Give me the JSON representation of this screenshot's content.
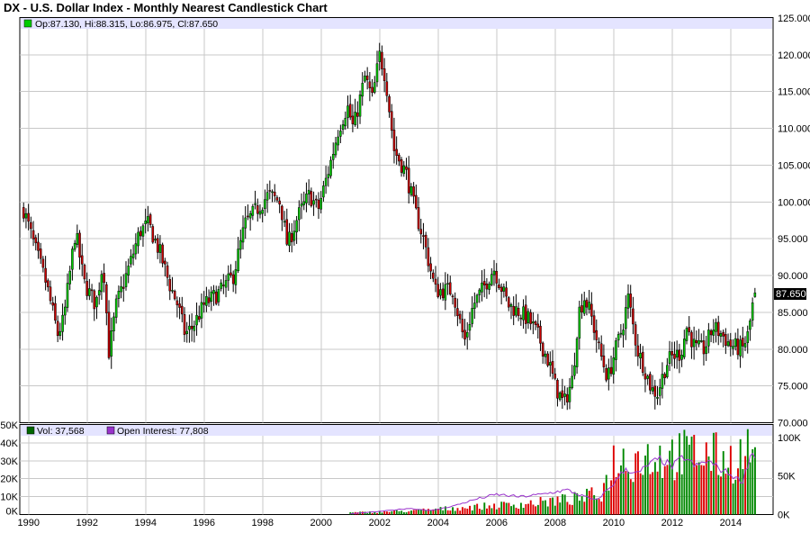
{
  "chart_data": {
    "type": "candlestick",
    "title": "DX - U.S. Dollar Index - Monthly Nearest Candlestick Chart",
    "legend": {
      "ohlc_label": "Op:87.130, Hi:88.315, Lo:86.975, Cl:87.650",
      "volume_label": "Vol: 37,568",
      "open_interest_label": "Open Interest: 77,808"
    },
    "last_price_label": "87.650",
    "x_ticks": [
      "1990",
      "1992",
      "1994",
      "1996",
      "1998",
      "2000",
      "2002",
      "2004",
      "2006",
      "2008",
      "2010",
      "2012",
      "2014"
    ],
    "price_axis": {
      "ticks": [
        "125.000",
        "120.000",
        "115.000",
        "110.000",
        "105.000",
        "100.000",
        "95.000",
        "90.000",
        "85.000",
        "80.000",
        "75.000",
        "70.000"
      ],
      "range": [
        70,
        125
      ]
    },
    "volume_axis": {
      "ticks": [
        "50K",
        "40K",
        "30K",
        "20K",
        "10K",
        "0K"
      ],
      "range": [
        0,
        50000
      ]
    },
    "open_interest_axis": {
      "ticks": [
        "100K",
        "50K",
        "0K"
      ],
      "range": [
        0,
        100000
      ]
    },
    "close_anchors": [
      [
        1989.83,
        99.0
      ],
      [
        1990.2,
        94.0
      ],
      [
        1990.6,
        89.0
      ],
      [
        1991.0,
        82.0
      ],
      [
        1991.2,
        84.0
      ],
      [
        1991.6,
        96.0
      ],
      [
        1991.9,
        89.0
      ],
      [
        1992.3,
        86.0
      ],
      [
        1992.55,
        92.0
      ],
      [
        1992.75,
        79.5
      ],
      [
        1993.0,
        86.0
      ],
      [
        1993.5,
        92.0
      ],
      [
        1993.8,
        96.0
      ],
      [
        1994.1,
        97.0
      ],
      [
        1994.5,
        93.0
      ],
      [
        1994.8,
        89.0
      ],
      [
        1995.1,
        86.0
      ],
      [
        1995.35,
        82.0
      ],
      [
        1995.6,
        83.0
      ],
      [
        1996.0,
        86.0
      ],
      [
        1996.6,
        88.0
      ],
      [
        1997.0,
        90.0
      ],
      [
        1997.4,
        97.0
      ],
      [
        1997.8,
        99.0
      ],
      [
        1998.2,
        101.0
      ],
      [
        1998.6,
        100.0
      ],
      [
        1998.85,
        94.0
      ],
      [
        1999.2,
        98.0
      ],
      [
        1999.6,
        101.0
      ],
      [
        1999.9,
        99.0
      ],
      [
        2000.3,
        105.0
      ],
      [
        2000.6,
        110.0
      ],
      [
        2000.9,
        113.0
      ],
      [
        2001.1,
        110.0
      ],
      [
        2001.5,
        117.0
      ],
      [
        2001.75,
        114.0
      ],
      [
        2002.0,
        120.0
      ],
      [
        2002.2,
        117.0
      ],
      [
        2002.5,
        107.0
      ],
      [
        2002.9,
        104.0
      ],
      [
        2003.2,
        99.0
      ],
      [
        2003.5,
        95.0
      ],
      [
        2003.9,
        88.0
      ],
      [
        2004.2,
        88.0
      ],
      [
        2004.5,
        88.0
      ],
      [
        2004.9,
        81.0
      ],
      [
        2005.2,
        86.0
      ],
      [
        2005.5,
        88.0
      ],
      [
        2005.9,
        91.0
      ],
      [
        2006.1,
        89.0
      ],
      [
        2006.4,
        86.0
      ],
      [
        2006.8,
        85.0
      ],
      [
        2007.1,
        84.0
      ],
      [
        2007.4,
        82.0
      ],
      [
        2007.8,
        78.0
      ],
      [
        2008.0,
        75.0
      ],
      [
        2008.3,
        72.5
      ],
      [
        2008.6,
        76.0
      ],
      [
        2008.8,
        85.0
      ],
      [
        2009.0,
        87.0
      ],
      [
        2009.2,
        85.0
      ],
      [
        2009.5,
        80.0
      ],
      [
        2009.8,
        76.0
      ],
      [
        2010.0,
        79.0
      ],
      [
        2010.3,
        83.0
      ],
      [
        2010.5,
        87.0
      ],
      [
        2010.8,
        80.0
      ],
      [
        2011.0,
        78.0
      ],
      [
        2011.3,
        74.5
      ],
      [
        2011.5,
        74.0
      ],
      [
        2011.8,
        78.0
      ],
      [
        2012.0,
        79.0
      ],
      [
        2012.3,
        79.5
      ],
      [
        2012.5,
        83.0
      ],
      [
        2012.8,
        80.0
      ],
      [
        2013.1,
        80.0
      ],
      [
        2013.4,
        83.0
      ],
      [
        2013.7,
        82.0
      ],
      [
        2014.0,
        80.5
      ],
      [
        2014.4,
        80.0
      ],
      [
        2014.6,
        82.0
      ],
      [
        2014.75,
        86.0
      ],
      [
        2014.87,
        87.65
      ]
    ],
    "oi_anchors": [
      [
        2001.0,
        1000
      ],
      [
        2002.0,
        4000
      ],
      [
        2003.0,
        8000
      ],
      [
        2003.8,
        5000
      ],
      [
        2004.6,
        12000
      ],
      [
        2005.3,
        20000
      ],
      [
        2006.0,
        26000
      ],
      [
        2006.8,
        23000
      ],
      [
        2007.5,
        26000
      ],
      [
        2008.4,
        32000
      ],
      [
        2008.8,
        26000
      ],
      [
        2009.4,
        18000
      ],
      [
        2010.0,
        40000
      ],
      [
        2010.4,
        60000
      ],
      [
        2010.8,
        52000
      ],
      [
        2011.2,
        65000
      ],
      [
        2011.6,
        72000
      ],
      [
        2012.0,
        62000
      ],
      [
        2012.4,
        75000
      ],
      [
        2012.8,
        62000
      ],
      [
        2013.2,
        70000
      ],
      [
        2013.6,
        60000
      ],
      [
        2014.0,
        52000
      ],
      [
        2014.4,
        42000
      ],
      [
        2014.7,
        80000
      ],
      [
        2014.87,
        77808
      ]
    ],
    "vol_anchors": [
      [
        2001.0,
        1000
      ],
      [
        2003.0,
        2000
      ],
      [
        2005.0,
        4000
      ],
      [
        2007.0,
        6000
      ],
      [
        2008.8,
        9000
      ],
      [
        2009.6,
        12000
      ],
      [
        2010.0,
        30000
      ],
      [
        2011.0,
        32000
      ],
      [
        2012.0,
        33000
      ],
      [
        2013.0,
        34000
      ],
      [
        2014.0,
        30000
      ],
      [
        2014.87,
        37568
      ]
    ],
    "colors": {
      "up": "#00cc00",
      "down": "#cc0000",
      "oi": "#9933cc",
      "header_band": "#e4e4ff",
      "wick": "#000000"
    }
  }
}
